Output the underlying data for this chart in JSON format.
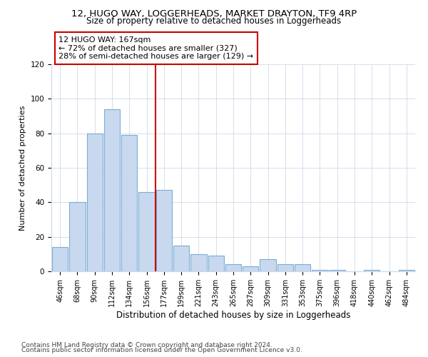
{
  "title1": "12, HUGO WAY, LOGGERHEADS, MARKET DRAYTON, TF9 4RP",
  "title2": "Size of property relative to detached houses in Loggerheads",
  "xlabel": "Distribution of detached houses by size in Loggerheads",
  "ylabel": "Number of detached properties",
  "categories": [
    "46sqm",
    "68sqm",
    "90sqm",
    "112sqm",
    "134sqm",
    "156sqm",
    "177sqm",
    "199sqm",
    "221sqm",
    "243sqm",
    "265sqm",
    "287sqm",
    "309sqm",
    "331sqm",
    "353sqm",
    "375sqm",
    "396sqm",
    "418sqm",
    "440sqm",
    "462sqm",
    "484sqm"
  ],
  "values": [
    14,
    40,
    80,
    94,
    79,
    46,
    47,
    15,
    10,
    9,
    4,
    3,
    7,
    4,
    4,
    1,
    1,
    0,
    1,
    0,
    1
  ],
  "bar_color": "#c8d9ef",
  "bar_edge_color": "#7aadd4",
  "vline_x": 6,
  "vline_color": "#cc0000",
  "annotation_title": "12 HUGO WAY: 167sqm",
  "annotation_line1": "← 72% of detached houses are smaller (327)",
  "annotation_line2": "28% of semi-detached houses are larger (129) →",
  "annotation_box_color": "#cc0000",
  "ylim": [
    0,
    120
  ],
  "yticks": [
    0,
    20,
    40,
    60,
    80,
    100,
    120
  ],
  "footer1": "Contains HM Land Registry data © Crown copyright and database right 2024.",
  "footer2": "Contains public sector information licensed under the Open Government Licence v3.0.",
  "title_fontsize": 9.5,
  "subtitle_fontsize": 8.5,
  "axis_label_fontsize": 8,
  "tick_fontsize": 7,
  "annotation_fontsize": 8,
  "footer_fontsize": 6.5
}
